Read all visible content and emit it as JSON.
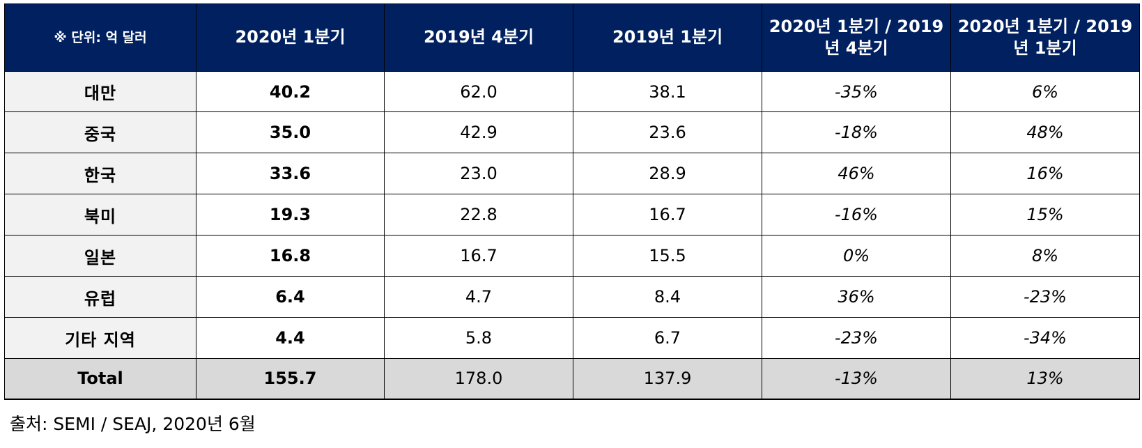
{
  "table": {
    "headers": [
      "※ 단위: 억 달러",
      "2020년 1분기",
      "2019년 4분기",
      "2019년 1분기",
      "2020년 1분기 / 2019년 4분기",
      "2020년 1분기 / 2019년 1분기"
    ],
    "rows": [
      {
        "region": "대만",
        "q1_2020": "40.2",
        "q4_2019": "62.0",
        "q1_2019": "38.1",
        "qoq": "-35%",
        "yoy": "6%"
      },
      {
        "region": "중국",
        "q1_2020": "35.0",
        "q4_2019": "42.9",
        "q1_2019": "23.6",
        "qoq": "-18%",
        "yoy": "48%"
      },
      {
        "region": "한국",
        "q1_2020": "33.6",
        "q4_2019": "23.0",
        "q1_2019": "28.9",
        "qoq": "46%",
        "yoy": "16%"
      },
      {
        "region": "북미",
        "q1_2020": "19.3",
        "q4_2019": "22.8",
        "q1_2019": "16.7",
        "qoq": "-16%",
        "yoy": "15%"
      },
      {
        "region": "일본",
        "q1_2020": "16.8",
        "q4_2019": "16.7",
        "q1_2019": "15.5",
        "qoq": "0%",
        "yoy": "8%"
      },
      {
        "region": "유럽",
        "q1_2020": "6.4",
        "q4_2019": "4.7",
        "q1_2019": "8.4",
        "qoq": "36%",
        "yoy": "-23%"
      },
      {
        "region": "기타 지역",
        "q1_2020": "4.4",
        "q4_2019": "5.8",
        "q1_2019": "6.7",
        "qoq": "-23%",
        "yoy": "-34%"
      }
    ],
    "total": {
      "region": "Total",
      "q1_2020": "155.7",
      "q4_2019": "178.0",
      "q1_2019": "137.9",
      "qoq": "-13%",
      "yoy": "13%"
    },
    "colors": {
      "header_bg": "#002060",
      "header_text": "#ffffff",
      "region_bg": "#f2f2f2",
      "total_bg": "#d9d9d9"
    }
  },
  "source": "출처: SEMI / SEAJ, 2020년 6월"
}
